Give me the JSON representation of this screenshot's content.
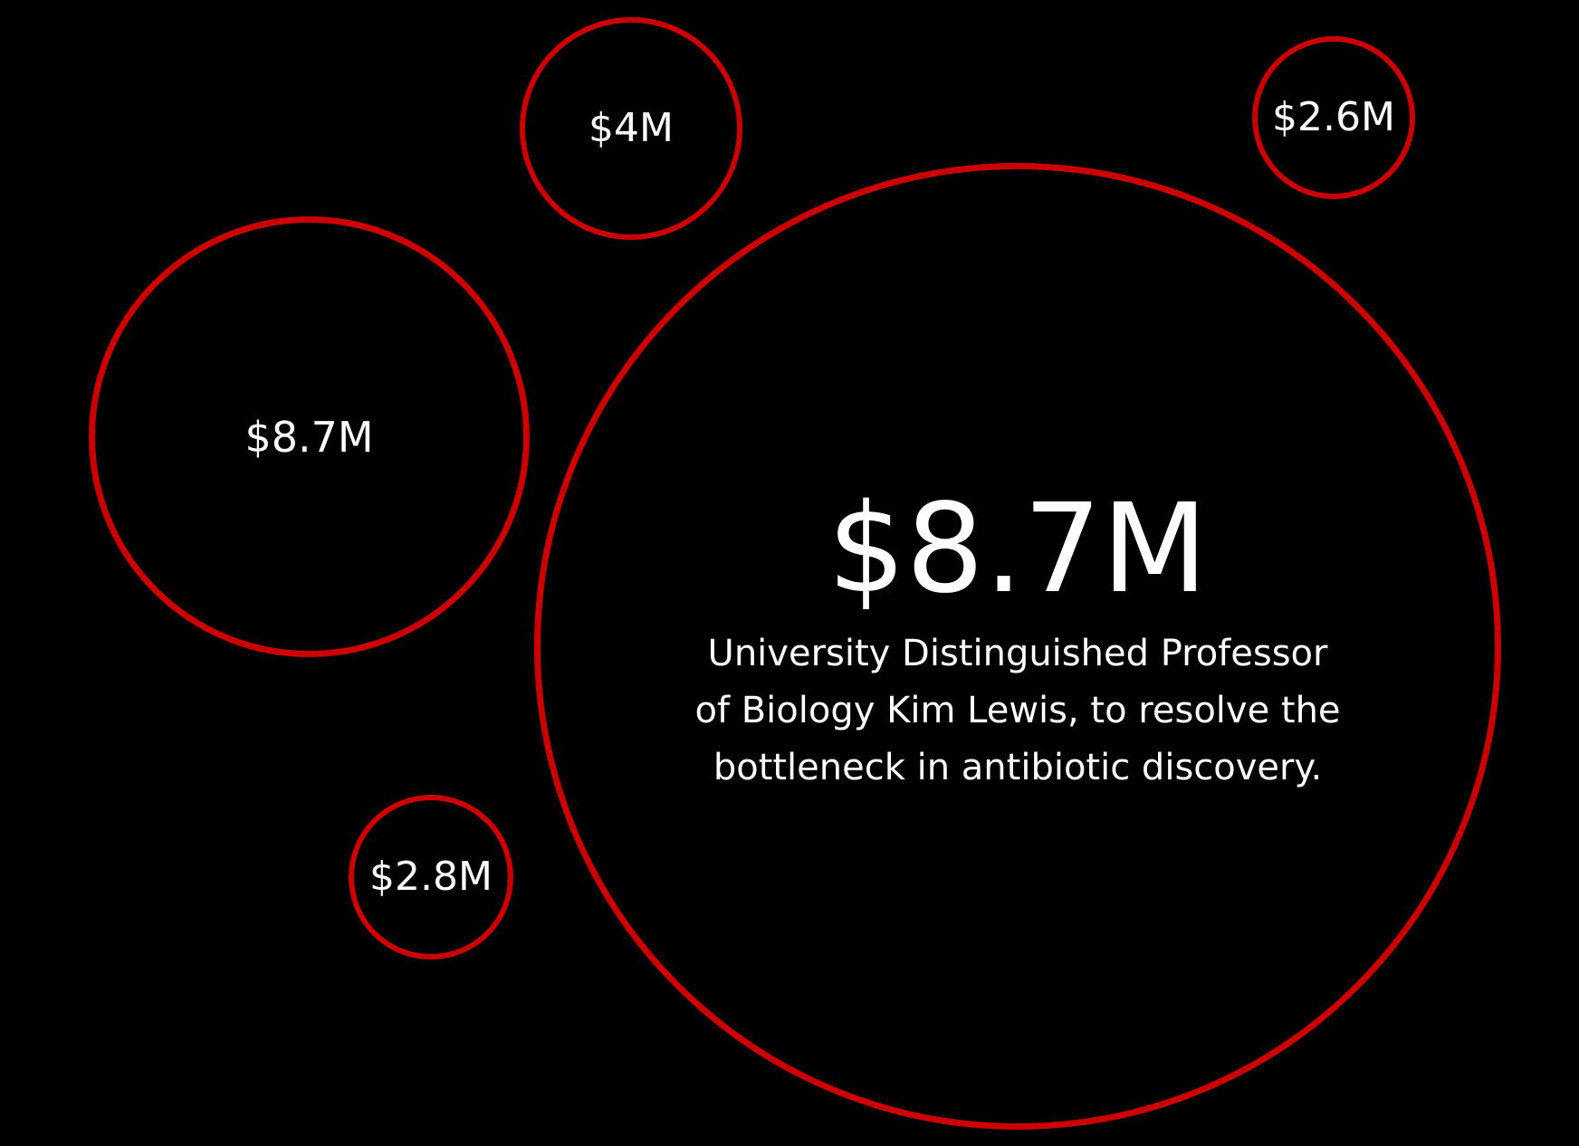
{
  "theme": {
    "background": "#000000",
    "ring_color": "#cc0000",
    "text_color": "#ffffff"
  },
  "bubbles": [
    {
      "id": "featured",
      "amount": "$8.7M"
    },
    {
      "id": "small-top",
      "amount": "$4M"
    },
    {
      "id": "small-top-right",
      "amount": "$2.6M"
    },
    {
      "id": "mid-left",
      "amount": "$8.7M"
    },
    {
      "id": "small-bottom-left",
      "amount": "$2.8M"
    }
  ],
  "featured": {
    "amount": "$8.7M",
    "caption_lines": [
      "University Distinguished Professor",
      "of Biology Kim Lewis, to resolve the",
      "bottleneck in antibiotic discovery."
    ]
  }
}
